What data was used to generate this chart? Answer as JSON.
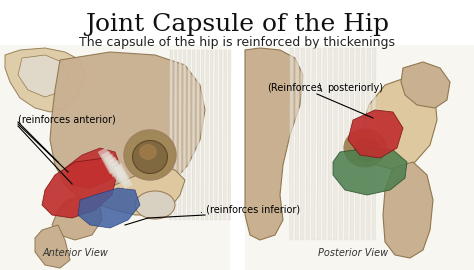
{
  "title": "Joint Capsule of the Hip",
  "subtitle": "The capsule of the hip is reinforced by thickenings",
  "title_fontsize": 18,
  "subtitle_fontsize": 9,
  "bg_color": "#ffffff",
  "title_color": "#111111",
  "subtitle_color": "#222222",
  "label_anterior": "(reinforces anterior)",
  "label_inferior": ". (reinforces inferior)",
  "label_posterior_1": "(Reinforces",
  "label_posterior_2": "posteriorly)",
  "caption_left": "Anterior View",
  "caption_right": "Posterior View",
  "bone_color": "#c8b090",
  "bone_light": "#ddc8a0",
  "bone_dark": "#a08060",
  "muscle_red": "#c03030",
  "muscle_blue": "#4060a0",
  "muscle_green": "#508050",
  "ligament_light": "#e8e4dc",
  "ligament_dark": "#c8c4b8",
  "shadow_color": "#907850",
  "white_bg": "#f0ece4",
  "gray_area": "#c8c8c8"
}
